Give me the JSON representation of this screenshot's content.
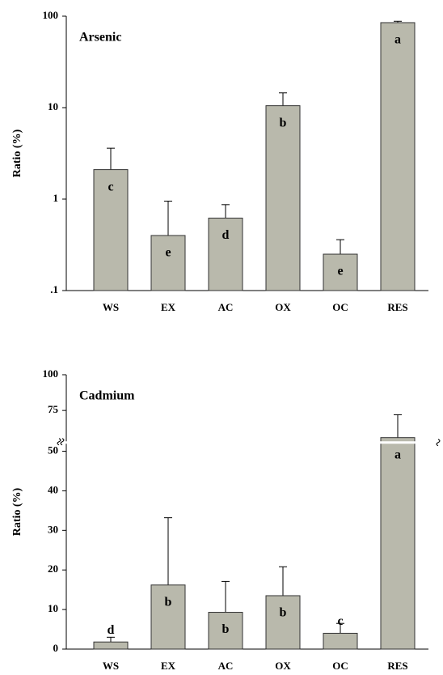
{
  "chart_data": [
    {
      "type": "bar",
      "title": "Arsenic",
      "ylabel": "Ratio (%)",
      "log": true,
      "categories": [
        "WS",
        "EX",
        "AC",
        "OX",
        "OC",
        "RES"
      ],
      "values": [
        2.1,
        0.4,
        0.62,
        10.5,
        0.25,
        85
      ],
      "errors": [
        1.5,
        0.55,
        0.25,
        4,
        0.11,
        3
      ],
      "letters": [
        "c",
        "e",
        "d",
        "b",
        "e",
        "a"
      ],
      "color": "#b9b9ac",
      "ylim": [
        0.1,
        100
      ],
      "yticks": [
        {
          "value": 0.1,
          "label": ".1"
        },
        1,
        10,
        100
      ]
    },
    {
      "type": "bar",
      "title": "Cadmium",
      "ylabel": "Ratio (%)",
      "log": false,
      "ybreak": 52,
      "categories": [
        "WS",
        "EX",
        "AC",
        "OX",
        "OC",
        "RES"
      ],
      "values": [
        1.8,
        16.2,
        9.3,
        13.5,
        4,
        56
      ],
      "errors": [
        1.2,
        17,
        7.8,
        7.3,
        2.5,
        16
      ],
      "letters": [
        "d",
        "b",
        "b",
        "b",
        "c",
        "a"
      ],
      "color": "#b9b9ac",
      "ylim": [
        0,
        100
      ],
      "yticks": [
        0,
        10,
        20,
        30,
        40,
        50,
        75,
        100
      ]
    }
  ]
}
